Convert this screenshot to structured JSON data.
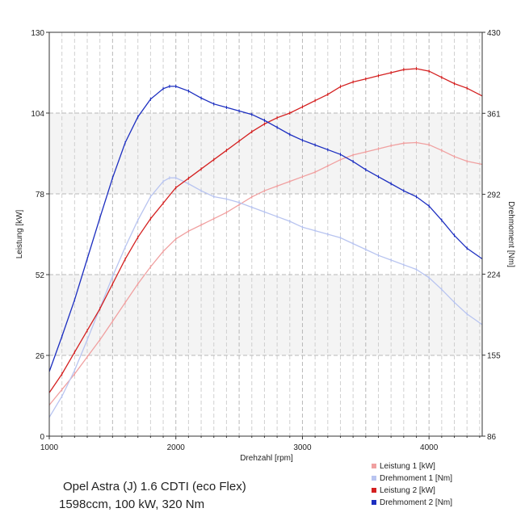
{
  "chart_data": {
    "type": "line",
    "title": "Opel Astra (J) 1.6 CDTI (eco Flex)",
    "subtitle": "1598ccm, 100 kW, 320 Nm",
    "xlabel": "Drehzahl [rpm]",
    "ylabel_left": "Leistung [kW]",
    "ylabel_right": "Drehmoment [Nm]",
    "xlim": [
      1000,
      4420
    ],
    "ylim_left": [
      0,
      130
    ],
    "ylim_right": [
      86,
      430
    ],
    "x_ticks": [
      1000,
      2000,
      3000,
      4000
    ],
    "y_ticks_left": [
      0,
      26,
      52,
      78,
      104,
      130
    ],
    "y_ticks_right": [
      86,
      155,
      224,
      292,
      361,
      430
    ],
    "x_tick_labels": [
      "1000",
      "2000",
      "3000",
      "4000"
    ],
    "y_tick_labels_left": [
      "0",
      "26",
      "52",
      "78",
      "104",
      "130"
    ],
    "y_tick_labels_right": [
      "86",
      "155",
      "224",
      "292",
      "361",
      "430"
    ],
    "grid": true,
    "legend_position": "bottom-right",
    "series": [
      {
        "name": "Leistung 1 [kW]",
        "axis": "left",
        "color": "#f0a0a0",
        "points": [
          [
            1000,
            10
          ],
          [
            1100,
            15
          ],
          [
            1200,
            20
          ],
          [
            1300,
            25.5
          ],
          [
            1400,
            31
          ],
          [
            1500,
            37
          ],
          [
            1600,
            43
          ],
          [
            1700,
            49
          ],
          [
            1800,
            54.5
          ],
          [
            1900,
            59.5
          ],
          [
            2000,
            63.5
          ],
          [
            2100,
            66
          ],
          [
            2200,
            68
          ],
          [
            2300,
            70
          ],
          [
            2400,
            72
          ],
          [
            2500,
            74.5
          ],
          [
            2600,
            77
          ],
          [
            2700,
            79
          ],
          [
            2800,
            80.5
          ],
          [
            2900,
            82
          ],
          [
            3000,
            83.5
          ],
          [
            3100,
            85
          ],
          [
            3200,
            87
          ],
          [
            3300,
            89
          ],
          [
            3400,
            90.5
          ],
          [
            3500,
            91.5
          ],
          [
            3600,
            92.5
          ],
          [
            3700,
            93.5
          ],
          [
            3800,
            94.3
          ],
          [
            3900,
            94.5
          ],
          [
            4000,
            93.8
          ],
          [
            4100,
            92
          ],
          [
            4200,
            90
          ],
          [
            4300,
            88.5
          ],
          [
            4420,
            87.5
          ]
        ]
      },
      {
        "name": "Drehmoment 1 [Nm]",
        "axis": "right",
        "color": "#b8c4f0",
        "points": [
          [
            1000,
            102
          ],
          [
            1100,
            120
          ],
          [
            1200,
            142
          ],
          [
            1300,
            168
          ],
          [
            1400,
            195
          ],
          [
            1500,
            222
          ],
          [
            1600,
            247
          ],
          [
            1700,
            270
          ],
          [
            1800,
            290
          ],
          [
            1900,
            303
          ],
          [
            1950,
            306
          ],
          [
            2000,
            306
          ],
          [
            2100,
            301
          ],
          [
            2200,
            295
          ],
          [
            2300,
            290
          ],
          [
            2400,
            288
          ],
          [
            2500,
            285
          ],
          [
            2600,
            281
          ],
          [
            2700,
            277
          ],
          [
            2800,
            273
          ],
          [
            2900,
            269
          ],
          [
            3000,
            264
          ],
          [
            3100,
            261
          ],
          [
            3200,
            258
          ],
          [
            3300,
            255
          ],
          [
            3400,
            250
          ],
          [
            3500,
            245
          ],
          [
            3600,
            240
          ],
          [
            3700,
            236
          ],
          [
            3800,
            232
          ],
          [
            3900,
            228
          ],
          [
            4000,
            221
          ],
          [
            4100,
            211
          ],
          [
            4200,
            200
          ],
          [
            4300,
            190
          ],
          [
            4420,
            181
          ]
        ]
      },
      {
        "name": "Leistung 2 [kW]",
        "axis": "left",
        "color": "#d42020",
        "points": [
          [
            1000,
            14
          ],
          [
            1100,
            20
          ],
          [
            1200,
            27
          ],
          [
            1300,
            34
          ],
          [
            1400,
            41
          ],
          [
            1500,
            49
          ],
          [
            1600,
            57
          ],
          [
            1700,
            64
          ],
          [
            1800,
            70
          ],
          [
            1900,
            75
          ],
          [
            2000,
            80
          ],
          [
            2100,
            83
          ],
          [
            2200,
            86
          ],
          [
            2300,
            89
          ],
          [
            2400,
            92
          ],
          [
            2500,
            95
          ],
          [
            2600,
            98
          ],
          [
            2700,
            100.5
          ],
          [
            2800,
            102.5
          ],
          [
            2900,
            104
          ],
          [
            3000,
            106
          ],
          [
            3100,
            108
          ],
          [
            3200,
            110
          ],
          [
            3300,
            112.5
          ],
          [
            3400,
            114
          ],
          [
            3500,
            115
          ],
          [
            3600,
            116
          ],
          [
            3700,
            117
          ],
          [
            3800,
            118
          ],
          [
            3900,
            118.3
          ],
          [
            4000,
            117.5
          ],
          [
            4100,
            115.5
          ],
          [
            4200,
            113.5
          ],
          [
            4300,
            112
          ],
          [
            4420,
            109.5
          ]
        ]
      },
      {
        "name": "Drehmoment 2 [Nm]",
        "axis": "right",
        "color": "#1c2ec0",
        "points": [
          [
            1000,
            141
          ],
          [
            1100,
            171
          ],
          [
            1200,
            202
          ],
          [
            1300,
            237
          ],
          [
            1400,
            272
          ],
          [
            1500,
            306
          ],
          [
            1600,
            336
          ],
          [
            1700,
            358
          ],
          [
            1800,
            373
          ],
          [
            1900,
            382
          ],
          [
            1950,
            384
          ],
          [
            2000,
            384
          ],
          [
            2100,
            380
          ],
          [
            2200,
            374
          ],
          [
            2300,
            369
          ],
          [
            2400,
            366
          ],
          [
            2500,
            363
          ],
          [
            2600,
            360
          ],
          [
            2700,
            355
          ],
          [
            2800,
            349
          ],
          [
            2900,
            343
          ],
          [
            3000,
            338
          ],
          [
            3100,
            334
          ],
          [
            3200,
            330
          ],
          [
            3300,
            326
          ],
          [
            3400,
            320
          ],
          [
            3500,
            313
          ],
          [
            3600,
            307
          ],
          [
            3700,
            301
          ],
          [
            3800,
            295
          ],
          [
            3900,
            290
          ],
          [
            4000,
            282
          ],
          [
            4100,
            270
          ],
          [
            4200,
            257
          ],
          [
            4300,
            246
          ],
          [
            4420,
            237
          ]
        ]
      }
    ]
  }
}
